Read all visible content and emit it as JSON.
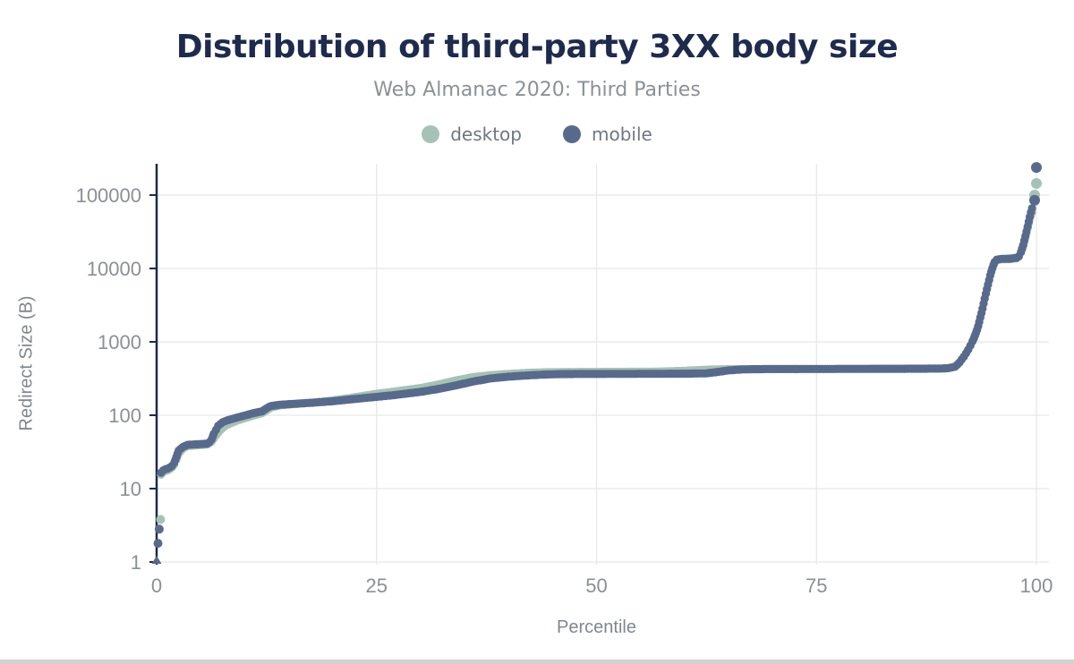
{
  "chart_data": {
    "type": "scatter",
    "title": "Distribution of third-party 3XX body size",
    "subtitle": "Web Almanac 2020: Third Parties",
    "xlabel": "Percentile",
    "ylabel": "Redirect Size (B)",
    "x_ticks": [
      0,
      25,
      50,
      75,
      100
    ],
    "y_ticks": [
      1,
      10,
      100,
      1000,
      10000,
      100000
    ],
    "y_scale": "log",
    "xlim": [
      0,
      100
    ],
    "ylim": [
      1,
      300000
    ],
    "grid": true,
    "legend_position": "top",
    "colors": {
      "axis": "#1a2b49",
      "gridline": "#e8e8e8",
      "tick_text": "#8a9095",
      "title_text": "#1e2b4d",
      "subtitle_text": "#8b9196",
      "legend_text": "#6e7780"
    },
    "series": [
      {
        "name": "desktop",
        "color": "#a6c2b4",
        "points": [
          [
            0.5,
            15.5
          ],
          [
            0.8,
            17
          ],
          [
            1.4,
            18
          ],
          [
            1.9,
            20
          ],
          [
            2.2,
            24
          ],
          [
            2.5,
            30
          ],
          [
            3,
            35
          ],
          [
            3.5,
            38
          ],
          [
            5.8,
            40
          ],
          [
            6.3,
            44
          ],
          [
            6.7,
            52
          ],
          [
            7.2,
            62
          ],
          [
            7.7,
            70
          ],
          [
            8.2,
            76
          ],
          [
            9,
            83
          ],
          [
            10,
            91
          ],
          [
            11,
            99
          ],
          [
            12,
            107
          ],
          [
            12.5,
            116
          ],
          [
            13,
            127
          ],
          [
            14,
            136
          ],
          [
            16,
            143
          ],
          [
            18,
            150
          ],
          [
            20,
            159
          ],
          [
            22,
            172
          ],
          [
            25,
            196
          ],
          [
            27,
            210
          ],
          [
            30,
            235
          ],
          [
            32,
            262
          ],
          [
            34,
            298
          ],
          [
            36,
            332
          ],
          [
            38,
            352
          ],
          [
            40,
            366
          ],
          [
            42,
            378
          ],
          [
            44,
            385
          ],
          [
            46,
            388
          ],
          [
            56,
            392
          ],
          [
            58,
            396
          ],
          [
            60,
            404
          ],
          [
            61.5,
            412
          ],
          [
            63,
            420
          ],
          [
            64.5,
            424
          ],
          [
            68,
            425
          ],
          [
            75,
            427
          ],
          [
            85,
            430
          ],
          [
            89,
            432
          ],
          [
            90,
            438
          ],
          [
            90.8,
            460
          ],
          [
            91.3,
            530
          ],
          [
            91.8,
            640
          ],
          [
            92.3,
            800
          ],
          [
            92.8,
            1050
          ],
          [
            93.3,
            1500
          ],
          [
            93.8,
            2600
          ],
          [
            94.3,
            4800
          ],
          [
            94.8,
            8500
          ],
          [
            95.2,
            11800
          ],
          [
            95.5,
            13000
          ],
          [
            96,
            13300
          ],
          [
            97,
            13400
          ],
          [
            97.8,
            13800
          ],
          [
            98.1,
            14800
          ],
          [
            98.3,
            17000
          ],
          [
            98.5,
            20000
          ],
          [
            98.7,
            25000
          ],
          [
            98.9,
            31000
          ],
          [
            99.1,
            40000
          ],
          [
            99.3,
            50000
          ],
          [
            99.5,
            58000
          ]
        ],
        "isolated_points": [
          [
            0.45,
            3.8
          ],
          [
            99.8,
            100000
          ],
          [
            100,
            144000
          ]
        ]
      },
      {
        "name": "mobile",
        "color": "#586a8c",
        "points": [
          [
            0.5,
            16.5
          ],
          [
            0.8,
            18
          ],
          [
            1.4,
            19
          ],
          [
            1.9,
            21
          ],
          [
            2.2,
            26
          ],
          [
            2.5,
            33
          ],
          [
            3,
            37
          ],
          [
            3.5,
            39.5
          ],
          [
            5.8,
            41
          ],
          [
            6.2,
            45
          ],
          [
            6.5,
            56
          ],
          [
            7,
            72
          ],
          [
            7.5,
            80
          ],
          [
            8,
            85
          ],
          [
            9,
            92
          ],
          [
            10,
            99
          ],
          [
            11,
            107
          ],
          [
            12,
            113
          ],
          [
            12.4,
            122
          ],
          [
            12.9,
            133
          ],
          [
            14,
            139
          ],
          [
            16,
            144
          ],
          [
            18,
            149
          ],
          [
            20,
            155
          ],
          [
            22,
            164
          ],
          [
            25,
            178
          ],
          [
            27,
            188
          ],
          [
            30,
            208
          ],
          [
            32,
            228
          ],
          [
            34,
            255
          ],
          [
            36,
            288
          ],
          [
            38,
            318
          ],
          [
            40,
            335
          ],
          [
            42,
            348
          ],
          [
            44,
            358
          ],
          [
            46,
            364
          ],
          [
            60,
            368
          ],
          [
            62.5,
            372
          ],
          [
            63.5,
            385
          ],
          [
            65,
            408
          ],
          [
            66.5,
            420
          ],
          [
            68,
            425
          ],
          [
            75,
            427
          ],
          [
            85,
            430
          ],
          [
            89,
            432
          ],
          [
            90,
            438
          ],
          [
            90.8,
            460
          ],
          [
            91.3,
            530
          ],
          [
            91.8,
            640
          ],
          [
            92.3,
            800
          ],
          [
            92.8,
            1050
          ],
          [
            93.3,
            1500
          ],
          [
            93.8,
            2600
          ],
          [
            94.3,
            4800
          ],
          [
            94.8,
            8500
          ],
          [
            95.2,
            12000
          ],
          [
            95.5,
            13200
          ],
          [
            96,
            13500
          ],
          [
            97,
            13600
          ],
          [
            97.8,
            14000
          ],
          [
            98.1,
            15000
          ],
          [
            98.3,
            17500
          ],
          [
            98.5,
            21000
          ],
          [
            98.7,
            26000
          ],
          [
            98.9,
            33000
          ],
          [
            99.1,
            42000
          ],
          [
            99.3,
            54000
          ],
          [
            99.5,
            66000
          ]
        ],
        "isolated_points": [
          [
            0.15,
            1.8
          ],
          [
            0.3,
            2.8
          ],
          [
            99.8,
            85000
          ],
          [
            100,
            238000
          ]
        ],
        "min_marker": {
          "percentile": 0,
          "value": 1,
          "shape": "triangle"
        }
      }
    ]
  }
}
